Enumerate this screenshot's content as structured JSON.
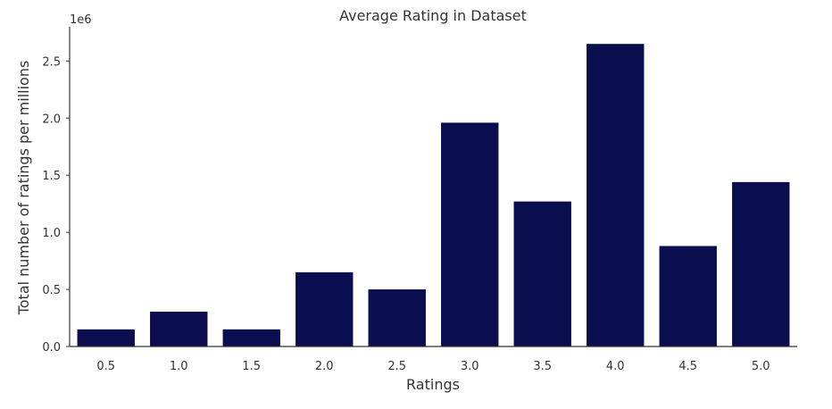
{
  "chart_data": {
    "type": "bar",
    "title": "Average Rating in Dataset",
    "xlabel": "Ratings",
    "ylabel": "Total number of ratings per millions",
    "y_offset_label": "1e6",
    "categories": [
      "0.5",
      "1.0",
      "1.5",
      "2.0",
      "2.5",
      "3.0",
      "3.5",
      "4.0",
      "4.5",
      "5.0"
    ],
    "values": [
      150000,
      305000,
      150000,
      650000,
      500000,
      1960000,
      1270000,
      2650000,
      880000,
      1440000
    ],
    "ylim": [
      0,
      2800000
    ],
    "yticks": [
      0,
      500000,
      1000000,
      1500000,
      2000000,
      2500000
    ],
    "ytick_labels": [
      "0.0",
      "0.5",
      "1.0",
      "1.5",
      "2.0",
      "2.5"
    ],
    "bar_color": "#0a0e4e",
    "grid": false,
    "legend": "none"
  }
}
